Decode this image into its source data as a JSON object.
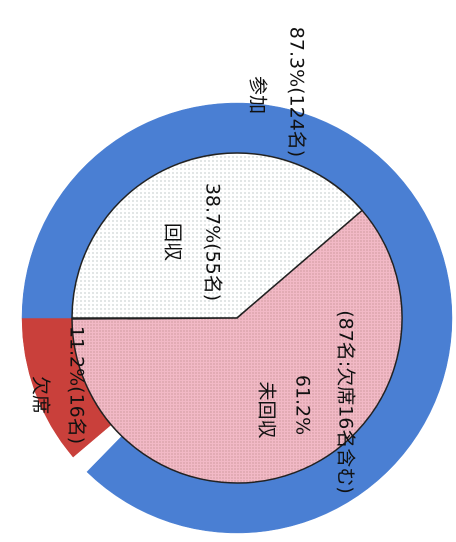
{
  "chart_data": {
    "type": "pie",
    "rings": [
      {
        "categories": [
          "欠席",
          "参加"
        ],
        "values": [
          11.2,
          87.3
        ],
        "value_labels": [
          "11.2%(16名)",
          "87.3%(124名)"
        ],
        "colors": [
          "#c9403b",
          "#4a7fd3"
        ]
      },
      {
        "categories": [
          "回収",
          "未回収"
        ],
        "values": [
          38.7,
          61.2
        ],
        "value_labels": [
          "38.7%(55名)",
          "61.2%"
        ],
        "colors": [
          "#ffffff",
          "#f2b9c6"
        ],
        "annotation": "(87名:欠席16名含む)"
      }
    ]
  }
}
